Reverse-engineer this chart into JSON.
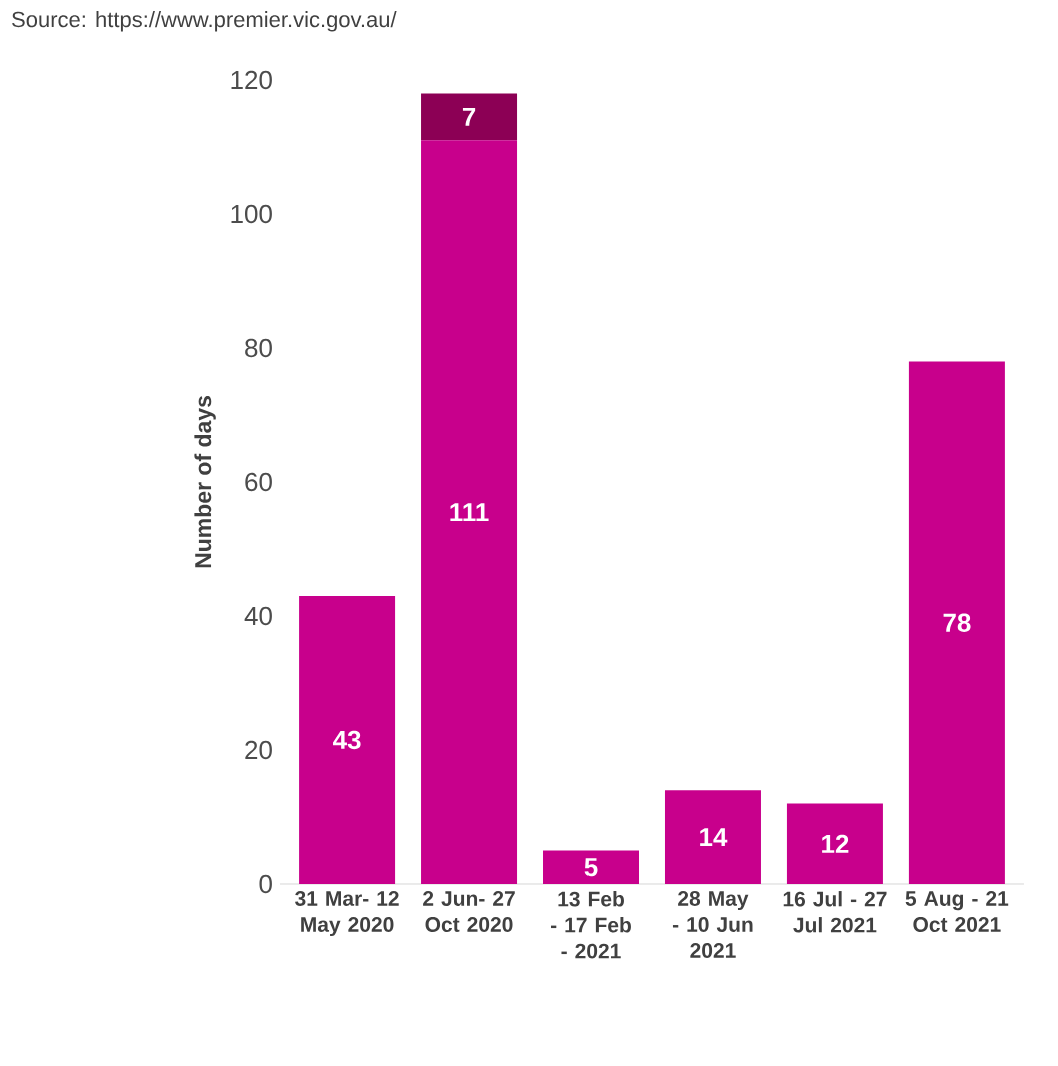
{
  "chart_data": {
    "type": "bar",
    "stacked": true,
    "ylabel": "Number of days",
    "annotations": [
      "Source: https://www.premier.vic.gov.au/"
    ],
    "categories": [
      "31 Mar- 12 May 2020",
      "2 Jun- 27 Oct 2020",
      "13 Feb - 17 Feb - 2021",
      "28 May - 10 Jun 2021",
      "16 Jul - 27 Jul 2021",
      "5 Aug - 21 Oct 2021"
    ],
    "series": [
      {
        "color": "#c8008c",
        "values": [
          43,
          111,
          5,
          14,
          12,
          78
        ]
      },
      {
        "color": "#8c0055",
        "values": [
          null,
          7,
          null,
          null,
          null,
          null
        ]
      }
    ],
    "ylim": [
      0,
      120
    ],
    "yticks": [
      0,
      20,
      40,
      60,
      80,
      100,
      120
    ],
    "data_labels": true,
    "grid": false
  }
}
